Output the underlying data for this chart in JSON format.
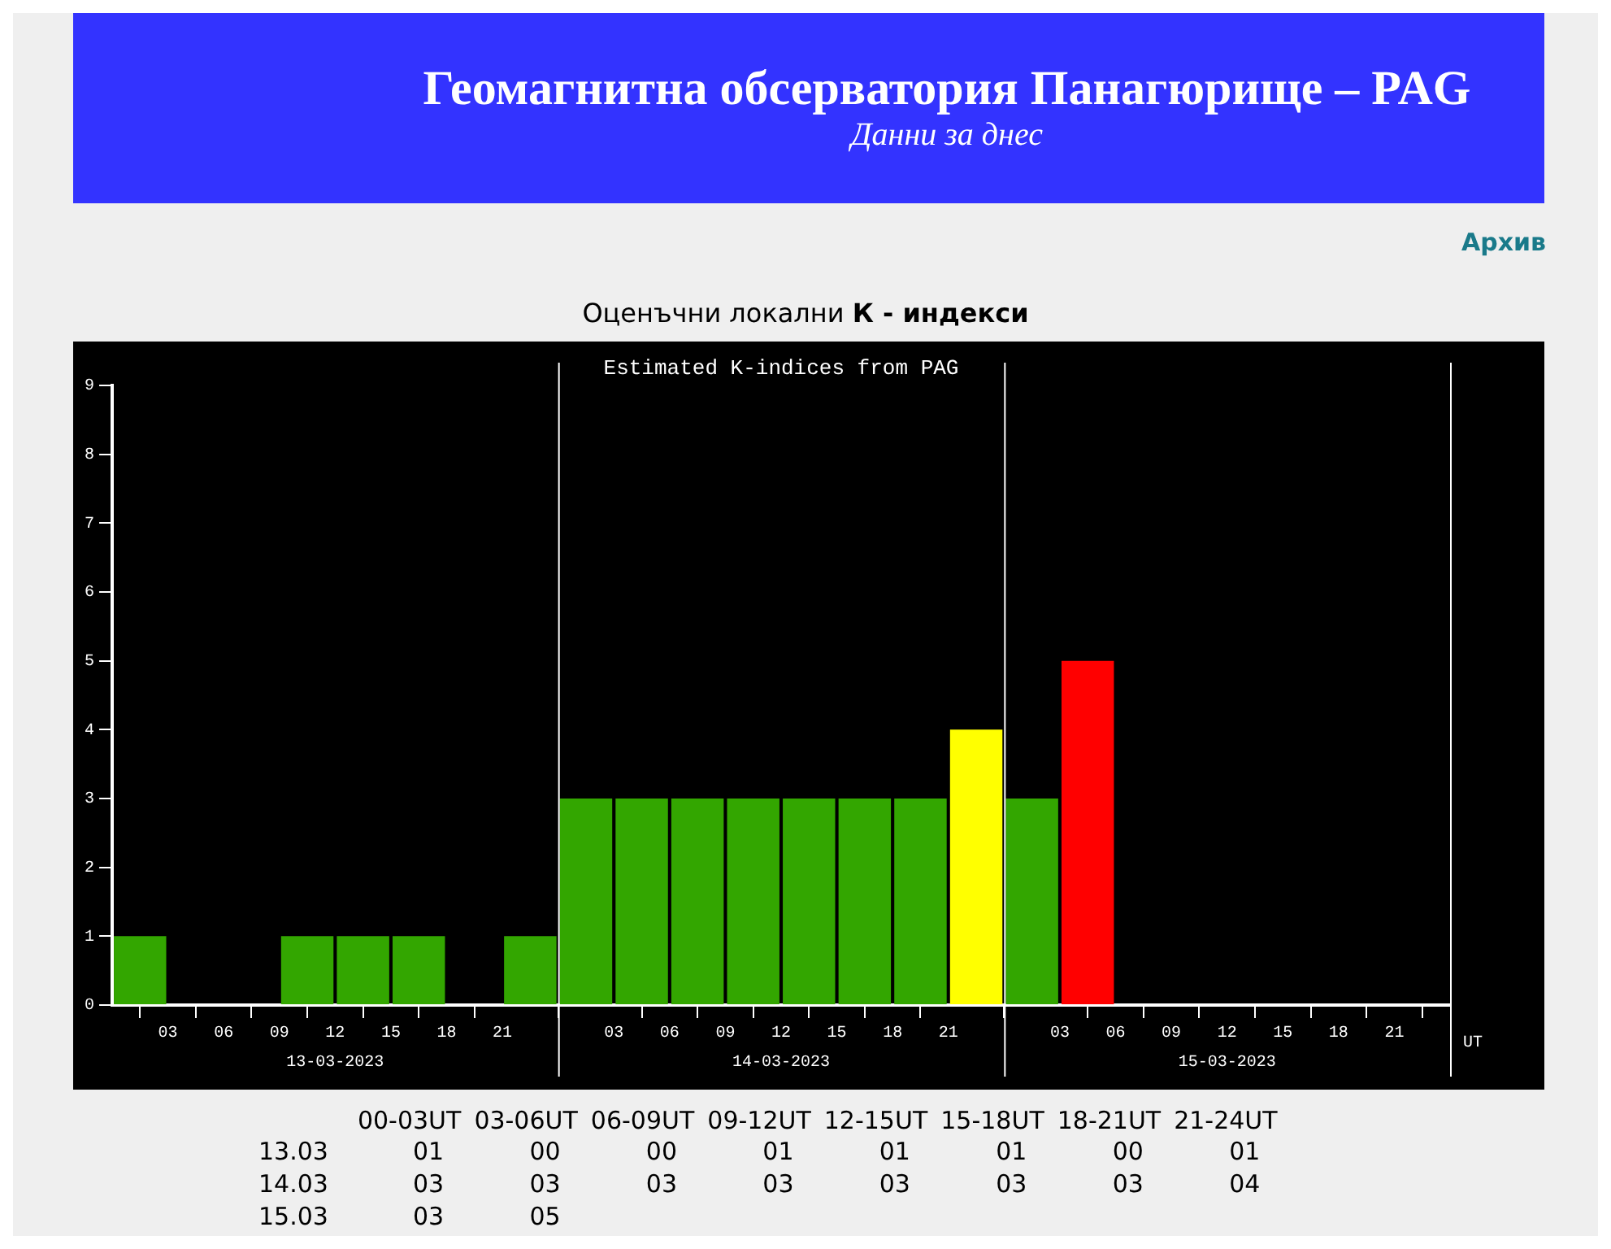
{
  "chart_data": {
    "type": "bar",
    "title": "Estimated K-indices from PAG",
    "xlabel": "UT",
    "x": [
      "2023-03-13T01:30",
      "2023-03-13T04:30",
      "2023-03-13T07:30",
      "2023-03-13T10:30",
      "2023-03-13T13:30",
      "2023-03-13T16:30",
      "2023-03-13T19:30",
      "2023-03-13T22:30",
      "2023-03-14T01:30",
      "2023-03-14T04:30",
      "2023-03-14T07:30",
      "2023-03-14T10:30",
      "2023-03-14T13:30",
      "2023-03-14T16:30",
      "2023-03-14T19:30",
      "2023-03-14T22:30",
      "2023-03-15T01:30",
      "2023-03-15T04:30"
    ],
    "values": [
      1,
      0,
      0,
      1,
      1,
      1,
      0,
      1,
      3,
      3,
      3,
      3,
      3,
      3,
      3,
      4,
      3,
      5
    ],
    "colors": [
      "#33a600",
      "#33a600",
      "#33a600",
      "#33a600",
      "#33a600",
      "#33a600",
      "#33a600",
      "#33a600",
      "#33a600",
      "#33a600",
      "#33a600",
      "#33a600",
      "#33a600",
      "#33a600",
      "#33a600",
      "#ffff00",
      "#33a600",
      "#ff0000"
    ],
    "xlim": [
      "2023-03-13T00:00",
      "2023-03-16T00:00"
    ],
    "xticks": [
      {
        "value": "2023-03-13T03:00",
        "label": "03"
      },
      {
        "value": "2023-03-13T06:00",
        "label": "06"
      },
      {
        "value": "2023-03-13T09:00",
        "label": "09"
      },
      {
        "value": "2023-03-13T12:00",
        "label": "12"
      },
      {
        "value": "2023-03-13T15:00",
        "label": "15"
      },
      {
        "value": "2023-03-13T18:00",
        "label": "18"
      },
      {
        "value": "2023-03-13T21:00",
        "label": "21"
      },
      {
        "value": "2023-03-14T03:00",
        "label": "03"
      },
      {
        "value": "2023-03-14T06:00",
        "label": "06"
      },
      {
        "value": "2023-03-14T09:00",
        "label": "09"
      },
      {
        "value": "2023-03-14T12:00",
        "label": "12"
      },
      {
        "value": "2023-03-14T15:00",
        "label": "15"
      },
      {
        "value": "2023-03-14T18:00",
        "label": "18"
      },
      {
        "value": "2023-03-14T21:00",
        "label": "21"
      },
      {
        "value": "2023-03-15T03:00",
        "label": "03"
      },
      {
        "value": "2023-03-15T06:00",
        "label": "06"
      },
      {
        "value": "2023-03-15T09:00",
        "label": "09"
      },
      {
        "value": "2023-03-15T12:00",
        "label": "12"
      },
      {
        "value": "2023-03-15T15:00",
        "label": "15"
      },
      {
        "value": "2023-03-15T18:00",
        "label": "18"
      },
      {
        "value": "2023-03-15T21:00",
        "label": "21"
      }
    ],
    "ylim": [
      0,
      9
    ],
    "yticks": [
      0,
      1,
      2,
      3,
      4,
      5,
      6,
      7,
      8,
      9
    ],
    "ref_lines": [
      {
        "axis": "x",
        "value": "2023-03-14T00:00",
        "color": "#ffffff"
      },
      {
        "axis": "x",
        "value": "2023-03-15T00:00",
        "color": "#ffffff"
      },
      {
        "axis": "x",
        "value": "2023-03-16T00:00",
        "color": "#ffffff"
      }
    ],
    "annotations": [
      "Геомагнитна обсерватория Панагюрище – PAG",
      "Данни за днес",
      "Архив",
      "Оценъчни локални",
      "К - индекси",
      "13-03-2023",
      "14-03-2023",
      "15-03-2023",
      "00-03UT",
      "03-06UT",
      "06-09UT",
      "09-12UT",
      "12-15UT",
      "15-18UT",
      "18-21UT",
      "21-24UT",
      "13.03",
      "14.03",
      "15.03",
      "01",
      "00",
      "00",
      "01",
      "01",
      "01",
      "00",
      "01",
      "03",
      "03",
      "03",
      "03",
      "03",
      "03",
      "03",
      "04",
      "03",
      "05"
    ]
  }
}
